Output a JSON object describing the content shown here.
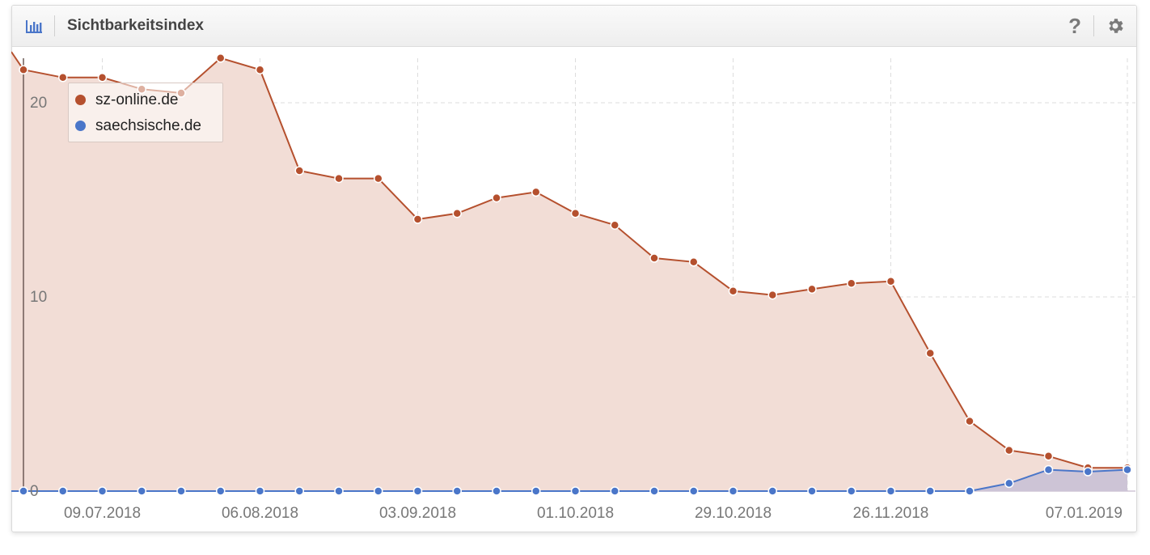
{
  "widget": {
    "title": "Sichtbarkeitsindex",
    "help_label": "?",
    "icons": {
      "chart": "bar-chart-icon",
      "help": "question-icon",
      "settings": "gear-icon"
    }
  },
  "colors": {
    "series1": "#b5502e",
    "series1_fill": "#f2ddd6",
    "series2": "#4a76c9",
    "series2_fill": "#cdc4d6",
    "grid": "#dddddd",
    "axis_text": "#777777"
  },
  "chart_data": {
    "type": "area",
    "x_ticks": [
      "09.07.2018",
      "06.08.2018",
      "03.09.2018",
      "01.10.2018",
      "29.10.2018",
      "26.11.2018",
      "07.01.2019"
    ],
    "y_ticks": [
      0,
      10,
      20
    ],
    "ylim": [
      0,
      23
    ],
    "grid": true,
    "legend_position": "top-left",
    "x": [
      "25.06.2018",
      "02.07.2018",
      "09.07.2018",
      "16.07.2018",
      "23.07.2018",
      "30.07.2018",
      "06.08.2018",
      "13.08.2018",
      "20.08.2018",
      "27.08.2018",
      "03.09.2018",
      "10.09.2018",
      "17.09.2018",
      "24.09.2018",
      "01.10.2018",
      "08.10.2018",
      "15.10.2018",
      "22.10.2018",
      "29.10.2018",
      "05.11.2018",
      "12.11.2018",
      "19.11.2018",
      "26.11.2018",
      "03.12.2018",
      "10.12.2018",
      "17.12.2018",
      "24.12.2018",
      "31.12.2018",
      "07.01.2019"
    ],
    "series": [
      {
        "name": "sz-online.de",
        "values": [
          21.7,
          21.3,
          21.3,
          20.7,
          20.5,
          22.3,
          21.7,
          16.5,
          16.1,
          16.1,
          14.0,
          14.3,
          15.1,
          15.4,
          14.3,
          13.7,
          12.0,
          11.8,
          10.3,
          10.1,
          10.4,
          10.7,
          10.8,
          7.1,
          3.6,
          2.1,
          1.8,
          1.2,
          1.2
        ]
      },
      {
        "name": "saechsische.de",
        "values": [
          0,
          0,
          0,
          0,
          0,
          0,
          0,
          0,
          0,
          0,
          0,
          0,
          0,
          0,
          0,
          0,
          0,
          0,
          0,
          0,
          0,
          0,
          0,
          0,
          0,
          0.4,
          1.1,
          1.0,
          1.1
        ]
      }
    ]
  }
}
